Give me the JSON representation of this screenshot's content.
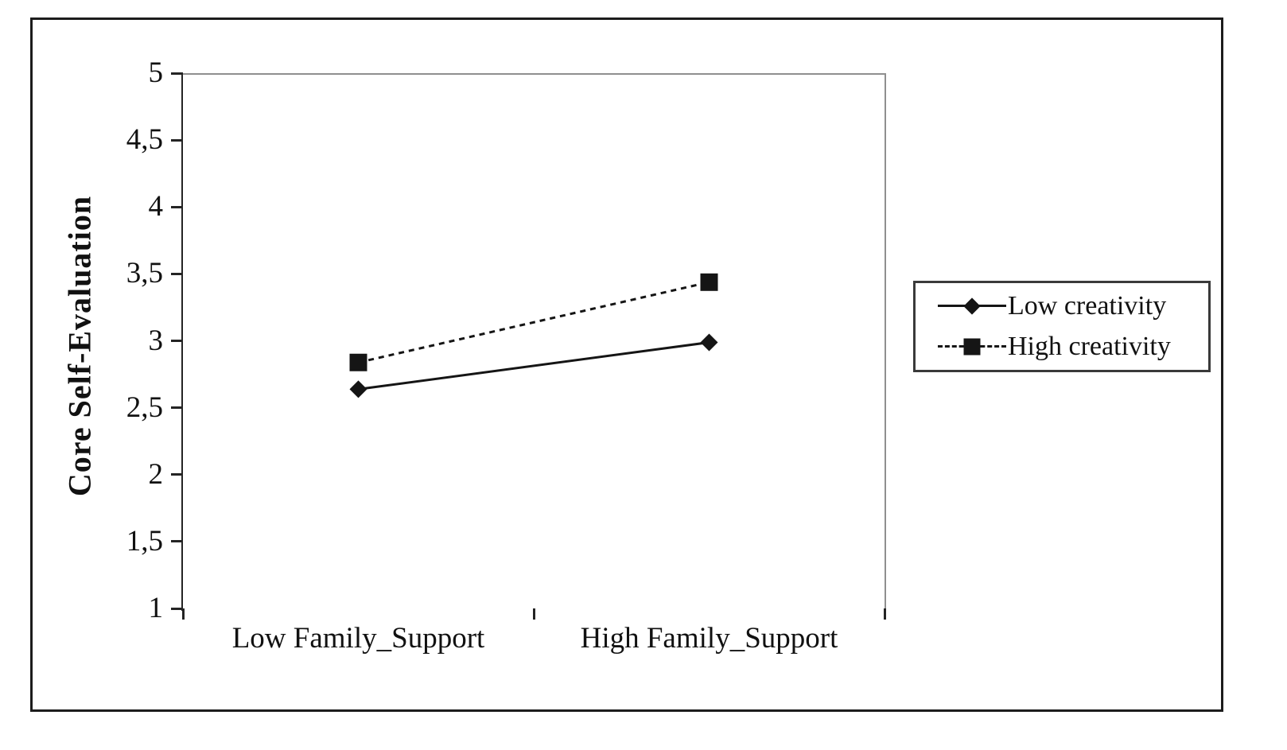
{
  "chart_data": {
    "type": "line",
    "title": "",
    "xlabel": "",
    "ylabel": "Core Self-Evaluation",
    "categories": [
      "Low Family_Support",
      "High Family_Support"
    ],
    "series": [
      {
        "name": "Low creativity",
        "values": [
          2.65,
          3.0
        ],
        "line_style": "solid",
        "marker": "diamond"
      },
      {
        "name": "High creativity",
        "values": [
          2.85,
          3.45
        ],
        "line_style": "dashed",
        "marker": "square"
      }
    ],
    "ylim": [
      1,
      5
    ],
    "yticks": [
      5,
      4.5,
      4,
      3.5,
      3,
      2.5,
      2,
      1.5,
      1
    ],
    "ytick_labels": [
      "5",
      "4,5",
      "4",
      "3,5",
      "3",
      "2,5",
      "2",
      "1,5",
      "1"
    ],
    "decimal_separator": ",",
    "grid": false,
    "legend_position": "right",
    "legend_entries": [
      "Low creativity",
      "High creativity"
    ]
  },
  "colors": {
    "series_line": "#151515",
    "axis": "#242424",
    "plot_border_light": "#8f8f8f",
    "frame": "#1c1c1c",
    "text": "#111111",
    "background": "#ffffff"
  }
}
